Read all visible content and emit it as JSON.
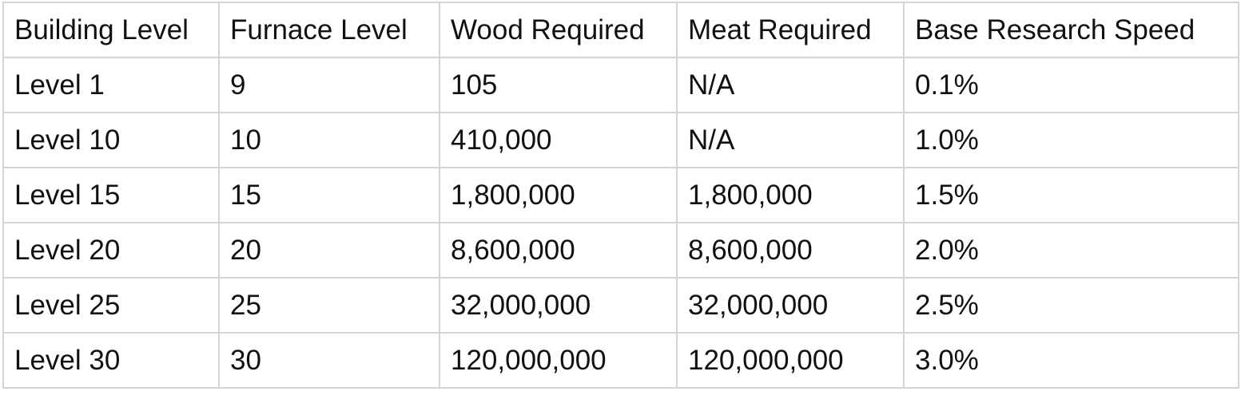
{
  "table": {
    "header": [
      "Building Level",
      "Furnace Level",
      "Wood Required",
      "Meat Required",
      "Base Research Speed"
    ],
    "rows": [
      [
        "Level 1",
        "9",
        "105",
        "N/A",
        "0.1%"
      ],
      [
        "Level 10",
        "10",
        "410,000",
        "N/A",
        "1.0%"
      ],
      [
        "Level 15",
        "15",
        "1,800,000",
        "1,800,000",
        "1.5%"
      ],
      [
        "Level 20",
        "20",
        "8,600,000",
        "8,600,000",
        "2.0%"
      ],
      [
        "Level 25",
        "25",
        "32,000,000",
        "32,000,000",
        "2.5%"
      ],
      [
        "Level 30",
        "30",
        "120,000,000",
        "120,000,000",
        "3.0%"
      ]
    ]
  }
}
